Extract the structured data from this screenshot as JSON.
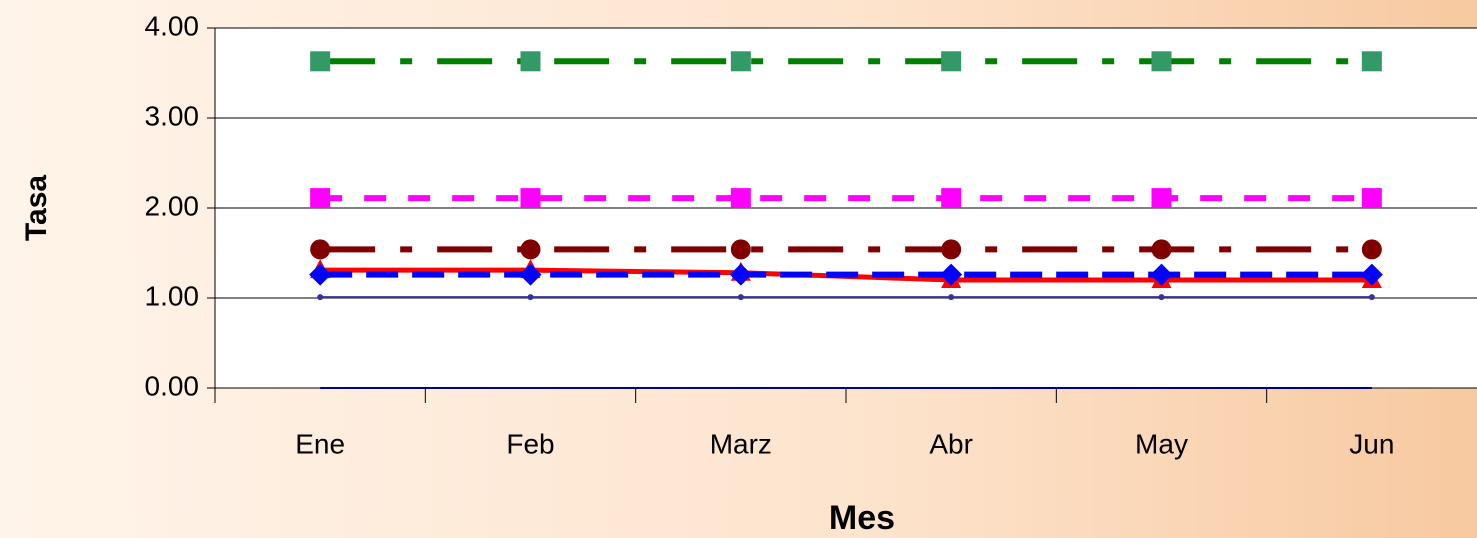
{
  "chart_data": {
    "type": "line",
    "x_label": "Mes",
    "y_label": "Tasa",
    "categories": [
      "Ene",
      "Feb",
      "Marz",
      "Abr",
      "May",
      "Jun"
    ],
    "series": [
      {
        "color": "#008000",
        "marker_color": "#339966",
        "style": "dashdot",
        "marker": "square",
        "values": [
          3.63,
          3.63,
          3.63,
          3.63,
          3.63,
          3.63
        ]
      },
      {
        "color": "#ff00ff",
        "marker_color": "#ff00ff",
        "style": "dot",
        "marker": "square",
        "values": [
          2.11,
          2.11,
          2.11,
          2.11,
          2.11,
          2.11
        ]
      },
      {
        "color": "#800000",
        "marker_color": "#800000",
        "style": "dashdot",
        "marker": "circle",
        "values": [
          1.54,
          1.54,
          1.54,
          1.54,
          1.54,
          1.54
        ]
      },
      {
        "color": "#ff0000",
        "marker_color": "#ff0000",
        "style": "solid",
        "marker": "triangle",
        "values": [
          1.31,
          1.31,
          1.28,
          1.2,
          1.2,
          1.2
        ]
      },
      {
        "color": "#0000ff",
        "marker_color": "#0000ff",
        "style": "dash",
        "marker": "diamond",
        "values": [
          1.26,
          1.26,
          1.26,
          1.26,
          1.26,
          1.26
        ]
      },
      {
        "color": "#333399",
        "marker_color": "#333399",
        "style": "thin",
        "marker": "dot",
        "values": [
          1.01,
          1.01,
          1.01,
          1.01,
          1.01,
          1.01
        ]
      },
      {
        "color": "#000080",
        "marker_color": "#000080",
        "style": "thin",
        "marker": "none",
        "values": [
          0,
          0,
          0,
          0,
          0,
          0
        ]
      }
    ],
    "ylim": [
      0,
      4
    ],
    "yticks": [
      {
        "value": 0,
        "label": "0.00"
      },
      {
        "value": 1,
        "label": "1.00"
      },
      {
        "value": 2,
        "label": "2.00"
      },
      {
        "value": 3,
        "label": "3.00"
      },
      {
        "value": 4,
        "label": "4.00"
      }
    ],
    "grid": true
  }
}
